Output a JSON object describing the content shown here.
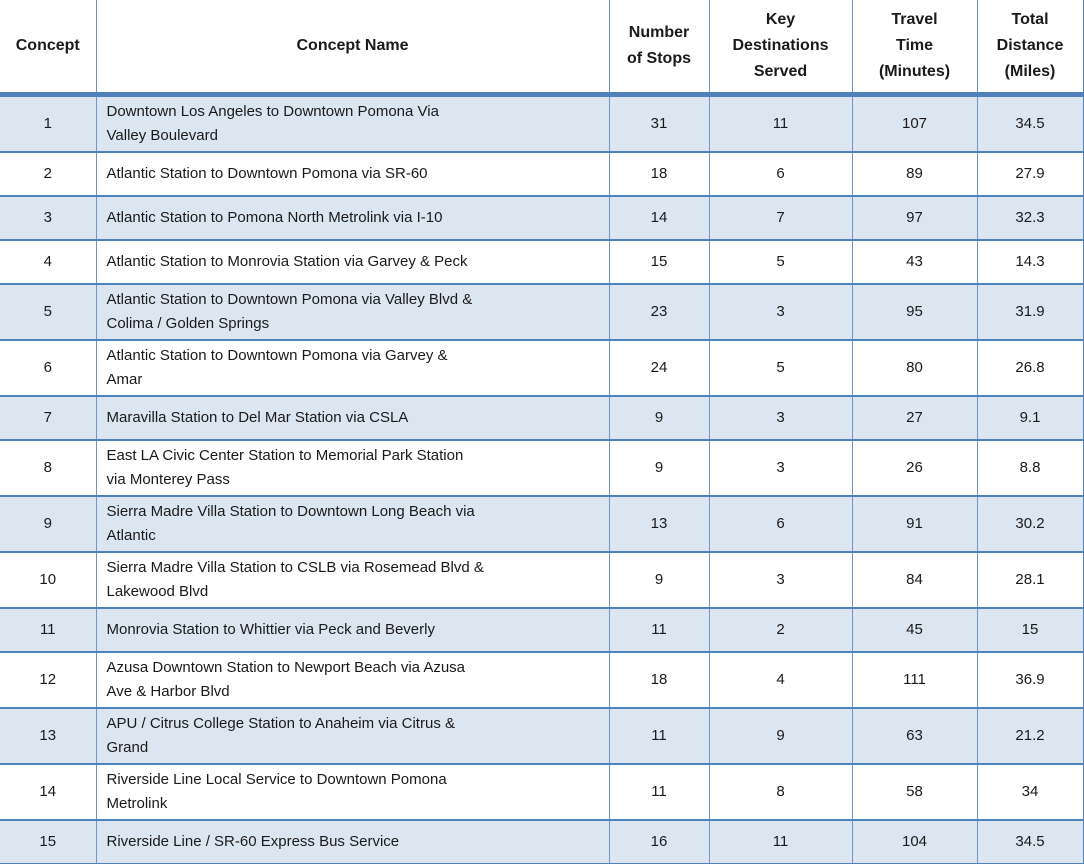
{
  "colors": {
    "band_fill": "#DCE6F1",
    "accent_border": "#4F81BD",
    "grid_border": "#6D96C6",
    "text": "#1A1A1A"
  },
  "table": {
    "columns": [
      {
        "key": "concept",
        "label": "Concept"
      },
      {
        "key": "name",
        "label": "Concept Name"
      },
      {
        "key": "stops",
        "label": "Number\nof Stops"
      },
      {
        "key": "destinations",
        "label": "Key\nDestinations\nServed"
      },
      {
        "key": "time",
        "label": "Travel\nTime\n(Minutes)"
      },
      {
        "key": "distance",
        "label": "Total\nDistance\n(Miles)"
      }
    ],
    "rows": [
      {
        "concept": 1,
        "name": "Downtown Los Angeles to Downtown Pomona Via\nValley Boulevard",
        "stops": 31,
        "destinations": 11,
        "time": 107,
        "distance": 34.5
      },
      {
        "concept": 2,
        "name": "Atlantic Station to Downtown Pomona via SR-60",
        "stops": 18,
        "destinations": 6,
        "time": 89,
        "distance": 27.9
      },
      {
        "concept": 3,
        "name": "Atlantic Station to Pomona North Metrolink via I-10",
        "stops": 14,
        "destinations": 7,
        "time": 97,
        "distance": 32.3
      },
      {
        "concept": 4,
        "name": "Atlantic Station to Monrovia Station via Garvey & Peck",
        "stops": 15,
        "destinations": 5,
        "time": 43,
        "distance": 14.3
      },
      {
        "concept": 5,
        "name": "Atlantic Station to Downtown Pomona via Valley Blvd &\nColima / Golden Springs",
        "stops": 23,
        "destinations": 3,
        "time": 95,
        "distance": 31.9
      },
      {
        "concept": 6,
        "name": "Atlantic Station to Downtown Pomona via Garvey &\nAmar",
        "stops": 24,
        "destinations": 5,
        "time": 80,
        "distance": 26.8
      },
      {
        "concept": 7,
        "name": "Maravilla Station to Del Mar Station via CSLA",
        "stops": 9,
        "destinations": 3,
        "time": 27,
        "distance": 9.1
      },
      {
        "concept": 8,
        "name": "East LA Civic Center Station to Memorial Park Station\nvia Monterey Pass",
        "stops": 9,
        "destinations": 3,
        "time": 26,
        "distance": 8.8
      },
      {
        "concept": 9,
        "name": "Sierra Madre Villa Station to Downtown Long Beach via\nAtlantic",
        "stops": 13,
        "destinations": 6,
        "time": 91,
        "distance": 30.2
      },
      {
        "concept": 10,
        "name": "Sierra Madre Villa Station to CSLB via Rosemead Blvd &\nLakewood Blvd",
        "stops": 9,
        "destinations": 3,
        "time": 84,
        "distance": 28.1
      },
      {
        "concept": 11,
        "name": "Monrovia Station to Whittier via Peck and Beverly",
        "stops": 11,
        "destinations": 2,
        "time": 45,
        "distance": 15
      },
      {
        "concept": 12,
        "name": "Azusa Downtown Station to Newport Beach via Azusa\nAve & Harbor Blvd",
        "stops": 18,
        "destinations": 4,
        "time": 111,
        "distance": 36.9
      },
      {
        "concept": 13,
        "name": "APU / Citrus College Station to Anaheim via Citrus &\nGrand",
        "stops": 11,
        "destinations": 9,
        "time": 63,
        "distance": 21.2
      },
      {
        "concept": 14,
        "name": "Riverside Line Local Service to Downtown Pomona\nMetrolink",
        "stops": 11,
        "destinations": 8,
        "time": 58,
        "distance": 34
      },
      {
        "concept": 15,
        "name": "Riverside Line / SR-60 Express Bus Service",
        "stops": 16,
        "destinations": 11,
        "time": 104,
        "distance": 34.5
      }
    ]
  }
}
